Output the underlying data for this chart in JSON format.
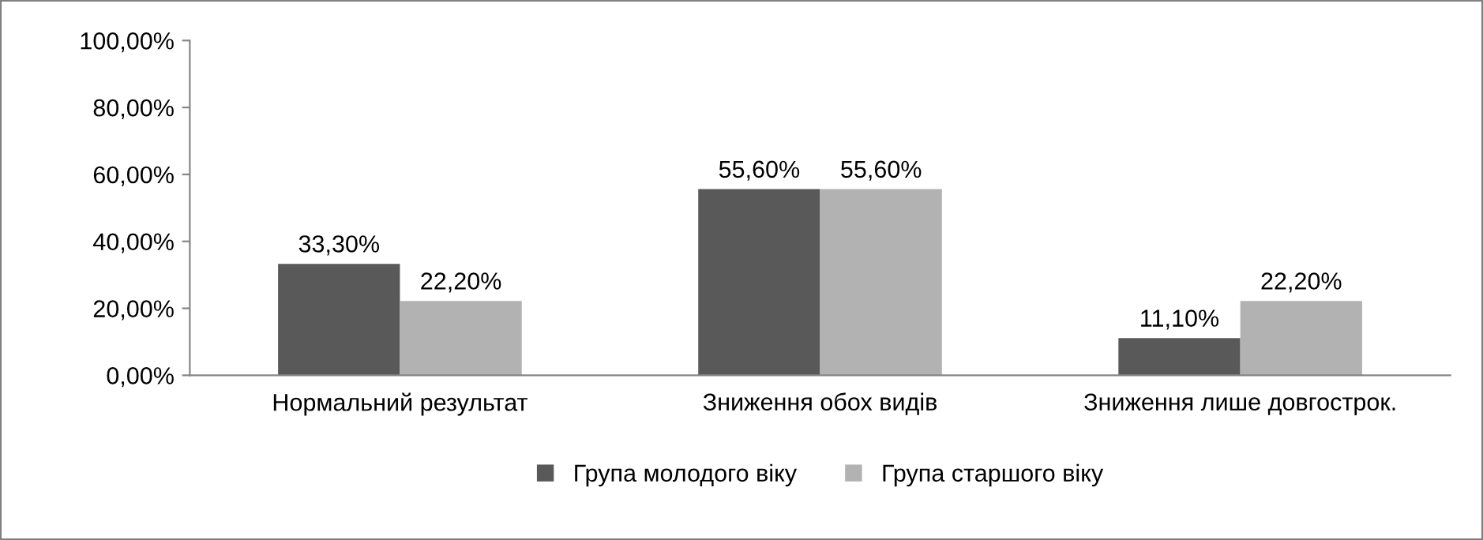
{
  "chart_data": {
    "type": "bar",
    "categories": [
      "Нормальний результат",
      "Зниження обох видів",
      "Зниження лише довгострок."
    ],
    "series": [
      {
        "name": "Група молодого віку",
        "color": "#595959",
        "values": [
          33.3,
          55.6,
          11.1
        ],
        "value_labels": [
          "33,30%",
          "55,60%",
          "11,10%"
        ]
      },
      {
        "name": "Група старшого віку",
        "color": "#b2b2b2",
        "values": [
          22.2,
          55.6,
          22.2
        ],
        "value_labels": [
          "22,20%",
          "55,60%",
          "22,20%"
        ]
      }
    ],
    "ylim": [
      0,
      100
    ],
    "yticks": [
      {
        "value": 0,
        "label": "0,00%"
      },
      {
        "value": 20,
        "label": "20,00%"
      },
      {
        "value": 40,
        "label": "40,00%"
      },
      {
        "value": 60,
        "label": "60,00%"
      },
      {
        "value": 80,
        "label": "80,00%"
      },
      {
        "value": 100,
        "label": "100,00%"
      }
    ],
    "grid": false,
    "legend": "bottom"
  }
}
